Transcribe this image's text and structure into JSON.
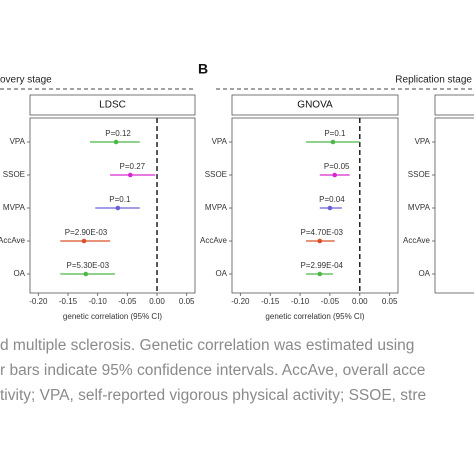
{
  "panel_label": "B",
  "stage_labels": [
    "overy stage",
    "Replication stage"
  ],
  "caption": [
    "d multiple sclerosis. Genetic correlation was estimated using",
    "r bars indicate 95% confidence intervals. AccAve, overall acce",
    "tivity; VPA, self-reported vigorous physical activity; SSOE, stre"
  ],
  "chart_data": [
    {
      "type": "forest",
      "title": "LDSC",
      "xlabel": "genetic correlation (95% CI)",
      "categories": [
        "VPA",
        "SSOE",
        "MVPA",
        "AccAve",
        "OA"
      ],
      "values": [
        -0.069,
        -0.045,
        -0.066,
        -0.123,
        -0.12
      ],
      "ci_low": [
        -0.113,
        -0.079,
        -0.104,
        -0.163,
        -0.163
      ],
      "ci_high": [
        -0.029,
        -0.003,
        -0.029,
        -0.079,
        -0.071
      ],
      "annotations": [
        "P=0.12",
        "P=0.27",
        "P=0.1",
        "P=2.90E-03",
        "P=5.30E-03"
      ],
      "colors": [
        "#4cb848",
        "#d62ad0",
        "#6a5fd8",
        "#d9502a",
        "#4cb848"
      ],
      "xlim": [
        -0.214,
        0.064
      ],
      "xticks": [
        {
          "value": -0.2,
          "label": "-0.20"
        },
        {
          "value": -0.15,
          "label": "-0.15"
        },
        {
          "value": -0.1,
          "label": "-0.10"
        },
        {
          "value": -0.05,
          "label": "-0.05"
        },
        {
          "value": 0,
          "label": "0.00"
        },
        {
          "value": 0.05,
          "label": "0.05"
        }
      ]
    },
    {
      "type": "forest",
      "title": "GNOVA",
      "xlabel": "genetic correlation (95% CI)",
      "categories": [
        "VPA",
        "SSOE",
        "MVPA",
        "AccAve",
        "OA"
      ],
      "values": [
        -0.045,
        -0.042,
        -0.05,
        -0.067,
        -0.067
      ],
      "ci_low": [
        -0.09,
        -0.067,
        -0.067,
        -0.09,
        -0.09
      ],
      "ci_high": [
        0.0,
        -0.017,
        -0.03,
        -0.042,
        -0.045
      ],
      "annotations": [
        "P=0.1",
        "P=0.05",
        "P=0.04",
        "P=4.70E-03",
        "P=2.99E-04"
      ],
      "colors": [
        "#4cb848",
        "#d62ad0",
        "#6a5fd8",
        "#d9502a",
        "#4cb848"
      ],
      "xlim": [
        -0.214,
        0.064
      ],
      "xticks": [
        {
          "value": -0.2,
          "label": "-0.20"
        },
        {
          "value": -0.15,
          "label": "-0.15"
        },
        {
          "value": -0.1,
          "label": "-0.10"
        },
        {
          "value": -0.05,
          "label": "-0.05"
        },
        {
          "value": 0,
          "label": "0.00"
        },
        {
          "value": 0.05,
          "label": "0.05"
        }
      ]
    },
    {
      "type": "forest",
      "categories": [
        "VPA",
        "SSOE",
        "MVPA",
        "AccAve",
        "OA"
      ]
    }
  ]
}
